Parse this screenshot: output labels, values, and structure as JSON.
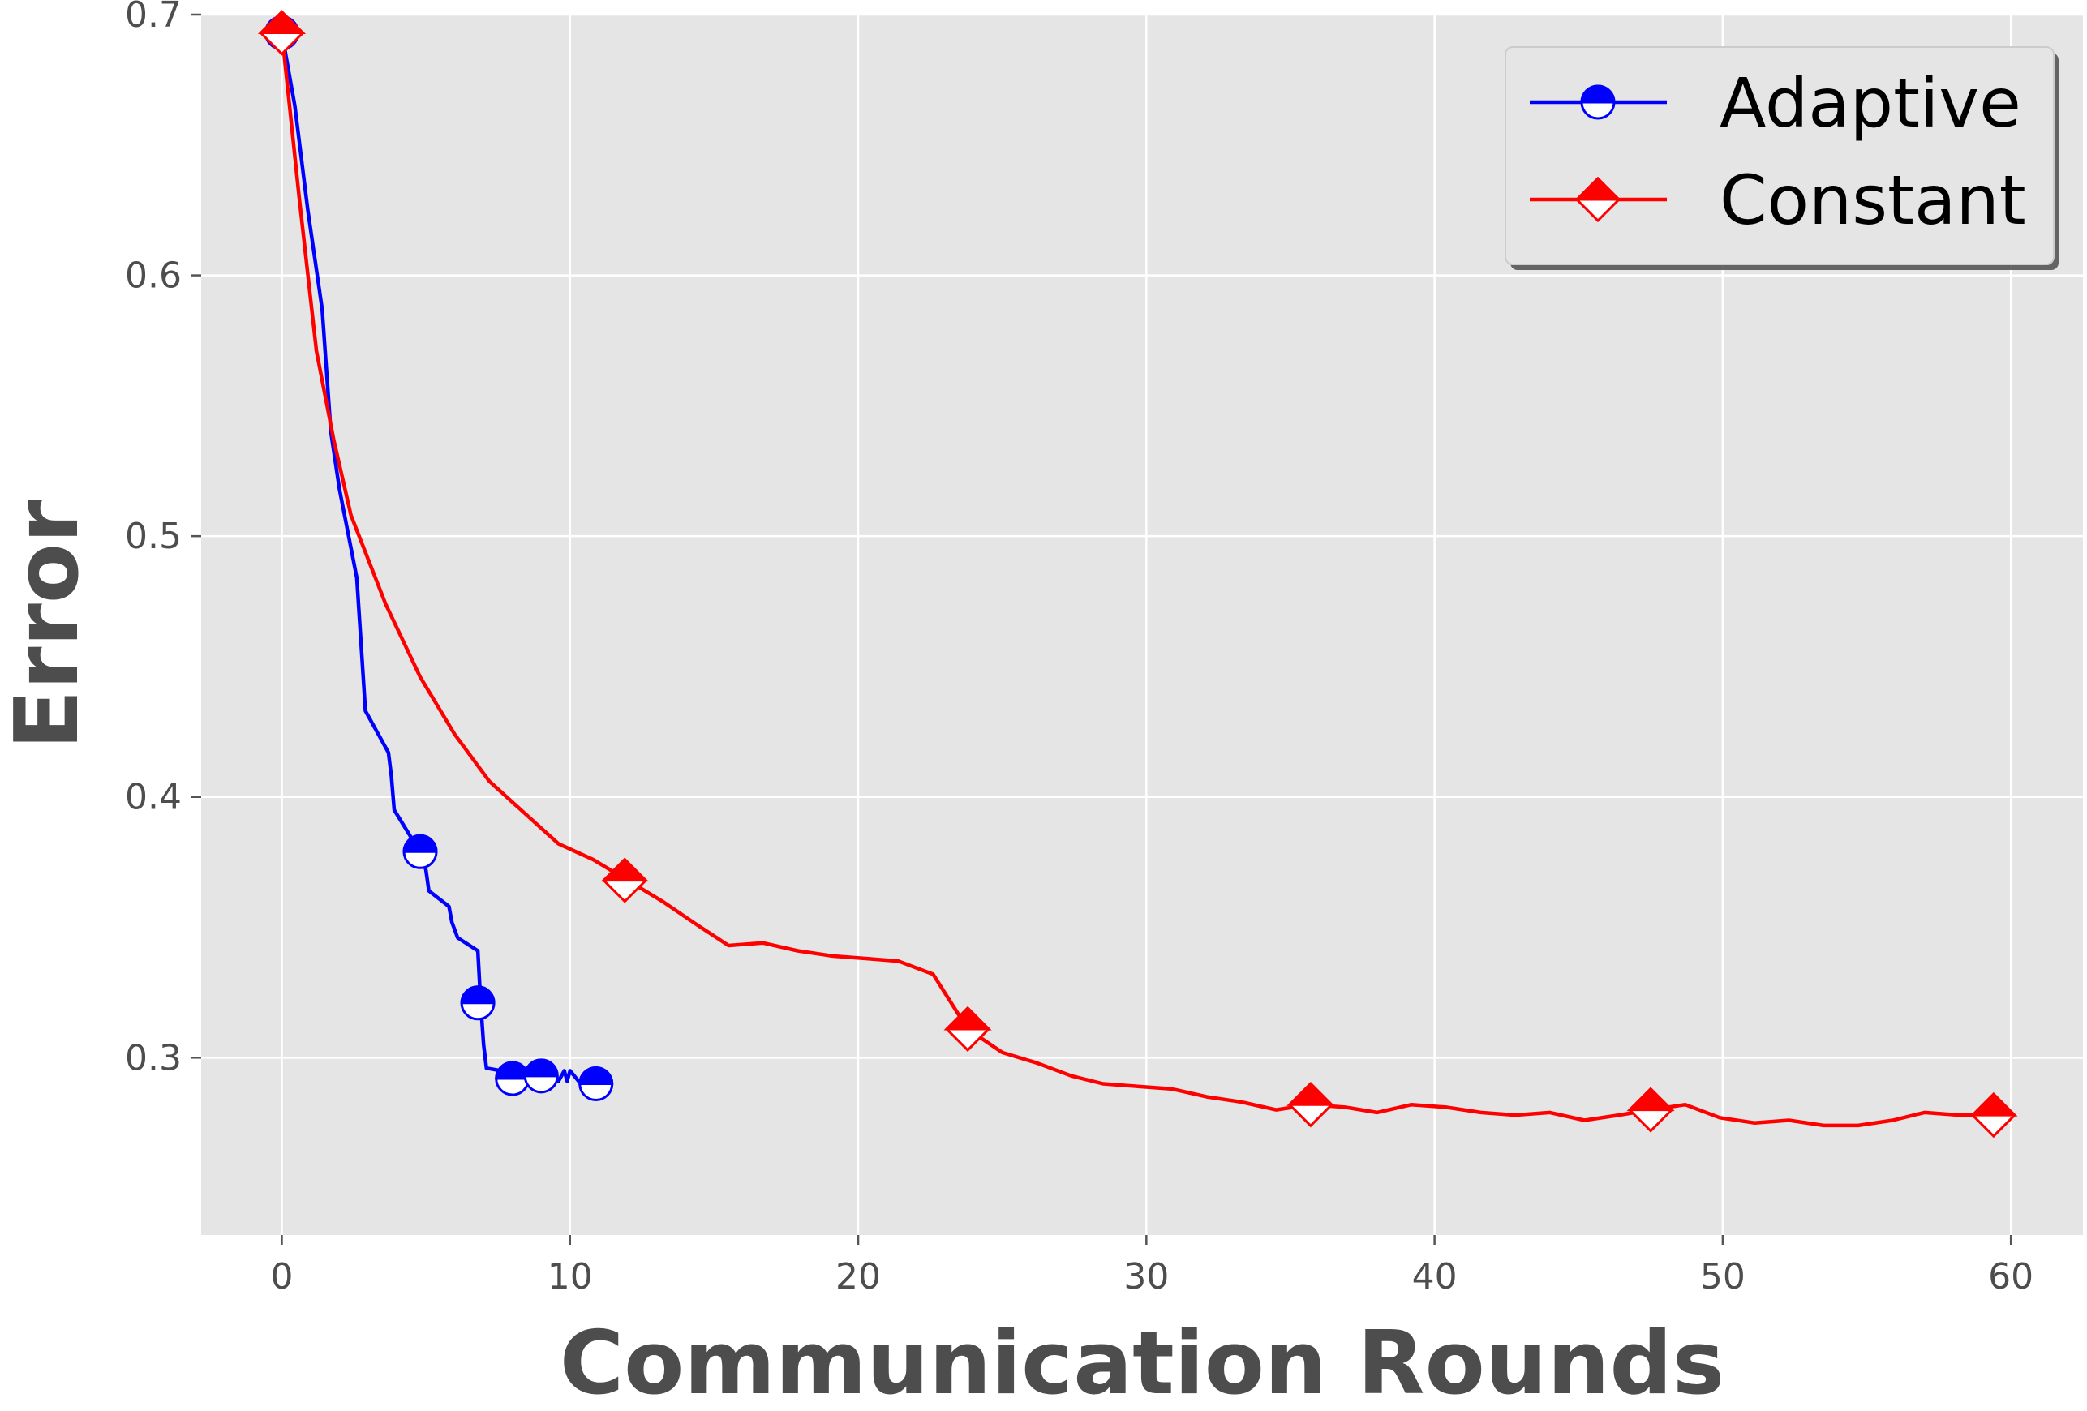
{
  "chart_data": {
    "type": "line",
    "title": "",
    "xlabel": "Communication Rounds",
    "ylabel": "Error",
    "xlim": [
      -2.8,
      62.5
    ],
    "ylim": [
      0.232,
      0.7
    ],
    "xticks": [
      0,
      10,
      20,
      30,
      40,
      50,
      60
    ],
    "yticks": [
      0.3,
      0.4,
      0.5,
      0.6,
      0.7
    ],
    "xtick_labels": [
      "0",
      "10",
      "20",
      "30",
      "40",
      "50",
      "60"
    ],
    "ytick_labels": [
      "0.3",
      "0.4",
      "0.5",
      "0.6",
      "0.7"
    ],
    "grid": true,
    "legend_position": "top-right",
    "series": [
      {
        "name": "Adaptive",
        "color": "#0000ff",
        "marker": "circle-half-top-filled",
        "x": [
          0.0,
          0.45,
          0.9,
          1.4,
          1.7,
          2.0,
          2.6,
          2.9,
          3.3,
          3.7,
          3.8,
          3.9,
          4.4,
          4.8,
          5.0,
          5.1,
          5.8,
          5.9,
          6.1,
          6.8,
          6.9,
          7.0,
          7.1,
          7.6,
          8.0,
          8.5,
          9.0,
          9.6,
          9.8,
          9.9,
          10.0,
          10.3,
          10.9
        ],
        "y": [
          0.693,
          0.665,
          0.625,
          0.587,
          0.54,
          0.518,
          0.484,
          0.433,
          0.425,
          0.417,
          0.408,
          0.395,
          0.386,
          0.379,
          0.372,
          0.364,
          0.358,
          0.352,
          0.346,
          0.341,
          0.321,
          0.305,
          0.296,
          0.295,
          0.293,
          0.292,
          0.293,
          0.291,
          0.295,
          0.291,
          0.295,
          0.291,
          0.29
        ],
        "marker_x": [
          0.0,
          4.8,
          6.8,
          8.0,
          9.0,
          10.9
        ],
        "marker_y": [
          0.693,
          0.379,
          0.321,
          0.292,
          0.293,
          0.29
        ]
      },
      {
        "name": "Constant",
        "color": "#ff0000",
        "marker": "diamond-half-top-filled",
        "x": [
          0.0,
          0.6,
          1.2,
          1.8,
          2.4,
          3.6,
          4.8,
          6.0,
          7.2,
          8.4,
          9.6,
          10.8,
          12.0,
          13.2,
          14.4,
          15.5,
          16.7,
          17.9,
          19.1,
          20.3,
          21.4,
          22.6,
          23.8,
          25.0,
          26.2,
          27.4,
          28.5,
          29.7,
          30.9,
          32.1,
          33.3,
          34.5,
          35.7,
          36.9,
          38.0,
          39.2,
          40.4,
          41.6,
          42.8,
          44.0,
          45.2,
          46.4,
          47.5,
          48.7,
          49.9,
          51.1,
          52.3,
          53.5,
          54.7,
          55.9,
          57.0,
          58.2,
          59.4
        ],
        "y": [
          0.693,
          0.63,
          0.571,
          0.537,
          0.508,
          0.474,
          0.446,
          0.424,
          0.406,
          0.394,
          0.382,
          0.376,
          0.368,
          0.36,
          0.351,
          0.343,
          0.344,
          0.341,
          0.339,
          0.338,
          0.337,
          0.332,
          0.311,
          0.302,
          0.298,
          0.293,
          0.29,
          0.289,
          0.288,
          0.285,
          0.283,
          0.28,
          0.282,
          0.281,
          0.279,
          0.282,
          0.281,
          0.279,
          0.278,
          0.279,
          0.276,
          0.278,
          0.28,
          0.282,
          0.277,
          0.275,
          0.276,
          0.274,
          0.274,
          0.276,
          0.279,
          0.278,
          0.278
        ],
        "marker_x": [
          0.0,
          11.9,
          23.8,
          35.7,
          47.5,
          59.4
        ],
        "marker_y": [
          0.693,
          0.368,
          0.311,
          0.282,
          0.28,
          0.278
        ]
      }
    ]
  }
}
